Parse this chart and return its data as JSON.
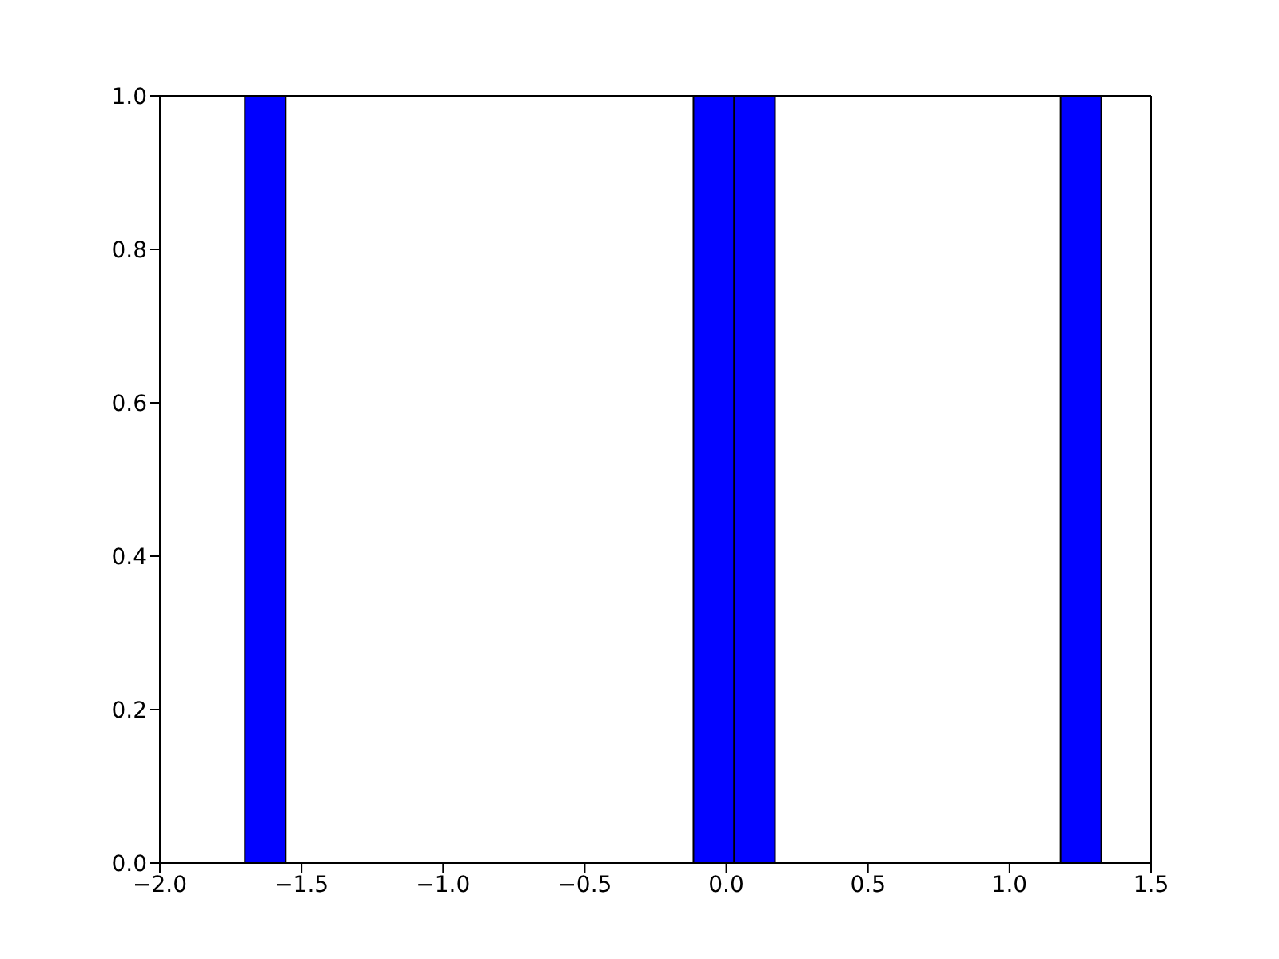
{
  "chart_data": {
    "type": "histogram",
    "bins": [
      -1.7,
      -1.556,
      -1.412,
      -1.268,
      -1.124,
      -0.98,
      -0.836,
      -0.692,
      -0.548,
      -0.404,
      -0.26,
      -0.116,
      0.028,
      0.172,
      0.316,
      0.46,
      0.604,
      0.748,
      0.892,
      1.036,
      1.18,
      1.324
    ],
    "values": [
      1,
      0,
      0,
      0,
      0,
      0,
      0,
      0,
      0,
      0,
      0,
      1,
      1,
      0,
      0,
      0,
      0,
      0,
      0,
      0,
      1
    ],
    "color": "#0000ff",
    "xlim": [
      -2.0,
      1.5
    ],
    "xticks": [
      {
        "value": -2.0,
        "label": "−2.0"
      },
      {
        "value": -1.5,
        "label": "−1.5"
      },
      {
        "value": -1.0,
        "label": "−1.0"
      },
      {
        "value": -0.5,
        "label": "−0.5"
      },
      {
        "value": 0.0,
        "label": "0.0"
      },
      {
        "value": 0.5,
        "label": "0.5"
      },
      {
        "value": 1.0,
        "label": "1.0"
      },
      {
        "value": 1.5,
        "label": "1.5"
      }
    ],
    "ylim": [
      0.0,
      1.0
    ],
    "yticks": [
      {
        "value": 0.0,
        "label": "0.0"
      },
      {
        "value": 0.2,
        "label": "0.2"
      },
      {
        "value": 0.4,
        "label": "0.4"
      },
      {
        "value": 0.6,
        "label": "0.6"
      },
      {
        "value": 0.8,
        "label": "0.8"
      },
      {
        "value": 1.0,
        "label": "1.0"
      }
    ],
    "grid": false
  }
}
